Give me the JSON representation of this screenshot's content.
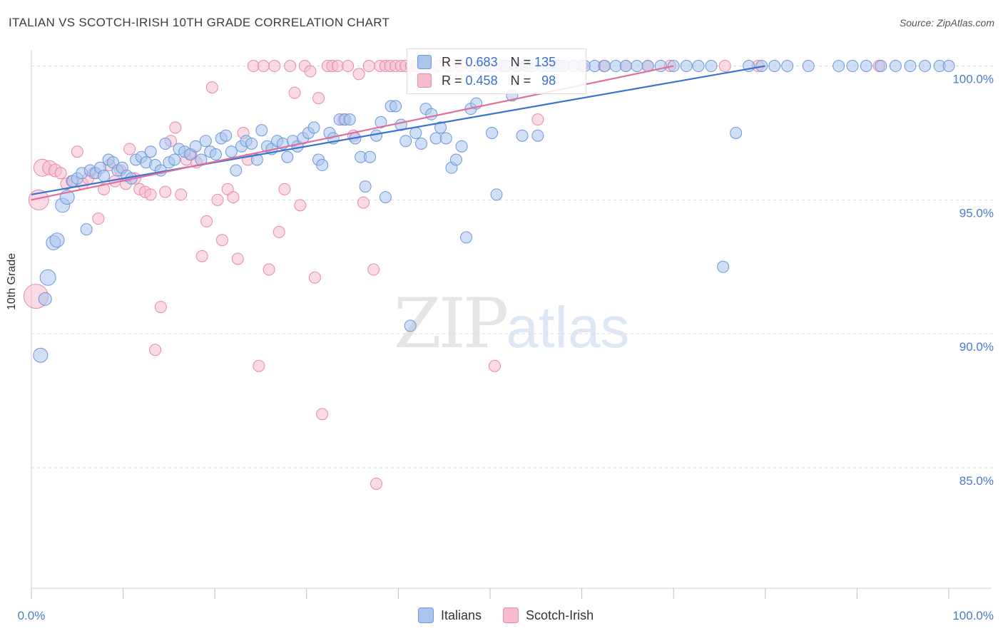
{
  "header": {
    "title": "ITALIAN VS SCOTCH-IRISH 10TH GRADE CORRELATION CHART",
    "source": "Source: ZipAtlas.com"
  },
  "watermark": {
    "zip": "ZIP",
    "atlas": "atlas"
  },
  "legend": {
    "rows": [
      {
        "r_label": "R =",
        "r_value": "0.683",
        "n_label": "N =",
        "n_value": "135"
      },
      {
        "r_label": "R =",
        "r_value": "0.458",
        "n_label": "N =",
        "n_value": "98"
      }
    ],
    "bottom": [
      "Italians",
      "Scotch-Irish"
    ]
  },
  "colors": {
    "italians_fill": "#a9c5ee",
    "italians_stroke": "#6d98d8",
    "italians_line": "#3a73d0",
    "scotch_fill": "#f6bccd",
    "scotch_stroke": "#e78aa8",
    "scotch_line": "#e0709a",
    "tick_label": "#4a7bd0"
  },
  "chart_data": {
    "type": "scatter",
    "title": "ITALIAN VS SCOTCH-IRISH 10TH GRADE CORRELATION CHART",
    "ylabel": "10th Grade",
    "xlabel": "",
    "xlim": [
      0,
      100
    ],
    "ylim": [
      80.5,
      100.6
    ],
    "x_tick_labels": [
      "0.0%",
      "100.0%"
    ],
    "y_ticks": [
      85.0,
      90.0,
      95.0,
      100.0
    ],
    "y_tick_labels": [
      "85.0%",
      "90.0%",
      "95.0%",
      "100.0%"
    ],
    "grid": true,
    "legend_placement": "top-center",
    "series": [
      {
        "name": "Italians",
        "trend": {
          "x": [
            0,
            80
          ],
          "y": [
            95.2,
            100.0
          ]
        },
        "points": [
          [
            1.0,
            89.2,
            10
          ],
          [
            1.5,
            91.3,
            9
          ],
          [
            1.8,
            92.1,
            11
          ],
          [
            2.4,
            93.4,
            10
          ],
          [
            2.8,
            93.5,
            10
          ],
          [
            3.4,
            94.8,
            10
          ],
          [
            3.9,
            95.1,
            10
          ],
          [
            4.5,
            95.7,
            8
          ],
          [
            5.0,
            95.8,
            8
          ],
          [
            5.5,
            96.0,
            8
          ],
          [
            6.0,
            93.9,
            8
          ],
          [
            6.4,
            96.1,
            8
          ],
          [
            7.0,
            96.0,
            8
          ],
          [
            7.5,
            96.2,
            8
          ],
          [
            7.9,
            95.9,
            8
          ],
          [
            8.4,
            96.5,
            8
          ],
          [
            8.9,
            96.4,
            8
          ],
          [
            9.4,
            96.1,
            8
          ],
          [
            9.9,
            96.2,
            8
          ],
          [
            10.4,
            95.9,
            8
          ],
          [
            10.9,
            95.8,
            8
          ],
          [
            11.4,
            96.5,
            8
          ],
          [
            12.0,
            96.6,
            8
          ],
          [
            12.5,
            96.4,
            8
          ],
          [
            13.0,
            96.8,
            8
          ],
          [
            13.5,
            96.3,
            8
          ],
          [
            14.1,
            96.1,
            8
          ],
          [
            14.6,
            97.1,
            8
          ],
          [
            15.0,
            96.4,
            8
          ],
          [
            15.6,
            96.5,
            8
          ],
          [
            16.1,
            96.9,
            8
          ],
          [
            16.7,
            96.8,
            8
          ],
          [
            17.3,
            96.7,
            8
          ],
          [
            17.9,
            97.0,
            8
          ],
          [
            18.5,
            96.5,
            8
          ],
          [
            19.0,
            97.2,
            8
          ],
          [
            19.5,
            96.8,
            8
          ],
          [
            20.1,
            96.7,
            8
          ],
          [
            20.7,
            97.3,
            8
          ],
          [
            21.2,
            97.4,
            8
          ],
          [
            21.8,
            96.8,
            8
          ],
          [
            22.3,
            96.1,
            8
          ],
          [
            22.9,
            97.0,
            8
          ],
          [
            23.4,
            97.2,
            8
          ],
          [
            24.0,
            97.1,
            8
          ],
          [
            24.6,
            96.5,
            8
          ],
          [
            25.1,
            97.6,
            8
          ],
          [
            25.7,
            97.0,
            8
          ],
          [
            26.2,
            96.9,
            8
          ],
          [
            26.8,
            97.2,
            8
          ],
          [
            27.4,
            97.1,
            8
          ],
          [
            27.9,
            96.6,
            8
          ],
          [
            28.5,
            97.2,
            8
          ],
          [
            29.0,
            97.0,
            8
          ],
          [
            29.6,
            97.3,
            8
          ],
          [
            30.2,
            97.5,
            8
          ],
          [
            30.8,
            97.7,
            8
          ],
          [
            31.3,
            96.5,
            8
          ],
          [
            31.7,
            96.3,
            8
          ],
          [
            32.5,
            97.5,
            8
          ],
          [
            32.9,
            97.3,
            8
          ],
          [
            33.6,
            98.0,
            8
          ],
          [
            34.2,
            98.0,
            8
          ],
          [
            34.7,
            98.0,
            8
          ],
          [
            35.3,
            97.3,
            8
          ],
          [
            35.9,
            96.6,
            8
          ],
          [
            36.4,
            95.5,
            8
          ],
          [
            36.9,
            96.6,
            8
          ],
          [
            37.6,
            97.4,
            8
          ],
          [
            38.1,
            97.9,
            8
          ],
          [
            38.6,
            95.1,
            8
          ],
          [
            39.2,
            98.5,
            8
          ],
          [
            39.7,
            98.5,
            8
          ],
          [
            40.3,
            97.8,
            8
          ],
          [
            40.8,
            97.2,
            8
          ],
          [
            41.3,
            90.3,
            8
          ],
          [
            41.9,
            97.5,
            8
          ],
          [
            42.5,
            97.1,
            8
          ],
          [
            43.0,
            98.4,
            8
          ],
          [
            43.6,
            98.2,
            8
          ],
          [
            44.1,
            97.3,
            8
          ],
          [
            44.6,
            97.7,
            8
          ],
          [
            45.2,
            97.3,
            8
          ],
          [
            45.8,
            96.2,
            8
          ],
          [
            46.3,
            96.5,
            8
          ],
          [
            46.9,
            97.0,
            8
          ],
          [
            47.4,
            93.6,
            8
          ],
          [
            47.9,
            98.4,
            8
          ],
          [
            48.5,
            98.6,
            8
          ],
          [
            49.0,
            100.0,
            8
          ],
          [
            49.6,
            100.0,
            8
          ],
          [
            50.2,
            97.5,
            8
          ],
          [
            50.7,
            95.2,
            8
          ],
          [
            51.3,
            100.0,
            8
          ],
          [
            51.8,
            100.0,
            8
          ],
          [
            52.4,
            98.9,
            8
          ],
          [
            53.0,
            100.0,
            8
          ],
          [
            53.5,
            97.4,
            8
          ],
          [
            54.0,
            100.0,
            8
          ],
          [
            54.6,
            100.0,
            8
          ],
          [
            55.2,
            97.4,
            8
          ],
          [
            55.7,
            100.0,
            8
          ],
          [
            56.3,
            100.0,
            8
          ],
          [
            56.8,
            100.0,
            8
          ],
          [
            57.4,
            100.0,
            8
          ],
          [
            58.0,
            100.0,
            8
          ],
          [
            59.1,
            100.0,
            8
          ],
          [
            60.3,
            100.0,
            8
          ],
          [
            61.4,
            100.0,
            8
          ],
          [
            62.5,
            100.0,
            8
          ],
          [
            63.7,
            100.0,
            8
          ],
          [
            64.8,
            100.0,
            8
          ],
          [
            66.0,
            100.0,
            8
          ],
          [
            67.2,
            100.0,
            8
          ],
          [
            68.6,
            100.0,
            8
          ],
          [
            70.0,
            100.0,
            8
          ],
          [
            71.4,
            100.0,
            8
          ],
          [
            72.7,
            100.0,
            8
          ],
          [
            74.1,
            100.0,
            8
          ],
          [
            75.4,
            92.5,
            8
          ],
          [
            76.8,
            97.5,
            8
          ],
          [
            78.2,
            100.0,
            8
          ],
          [
            79.6,
            100.0,
            8
          ],
          [
            81.0,
            100.0,
            8
          ],
          [
            82.4,
            100.0,
            8
          ],
          [
            84.7,
            100.0,
            8
          ],
          [
            88.0,
            100.0,
            8
          ],
          [
            89.5,
            100.0,
            8
          ],
          [
            91.0,
            100.0,
            8
          ],
          [
            92.6,
            100.0,
            8
          ],
          [
            94.2,
            100.0,
            8
          ],
          [
            95.8,
            100.0,
            8
          ],
          [
            97.4,
            100.0,
            8
          ],
          [
            99.0,
            100.0,
            8
          ],
          [
            100.0,
            100.0,
            8
          ]
        ]
      },
      {
        "name": "Scotch-Irish",
        "trend": {
          "x": [
            0,
            70
          ],
          "y": [
            95.0,
            100.0
          ]
        },
        "points": [
          [
            0.5,
            91.4,
            17
          ],
          [
            0.8,
            95.0,
            14
          ],
          [
            1.2,
            96.2,
            12
          ],
          [
            2.0,
            96.2,
            10
          ],
          [
            2.6,
            96.1,
            9
          ],
          [
            3.2,
            96.0,
            8
          ],
          [
            3.8,
            95.6,
            8
          ],
          [
            4.4,
            95.7,
            8
          ],
          [
            5.0,
            96.8,
            8
          ],
          [
            5.6,
            95.6,
            8
          ],
          [
            6.2,
            95.8,
            8
          ],
          [
            6.8,
            96.0,
            8
          ],
          [
            7.3,
            94.3,
            8
          ],
          [
            7.9,
            95.4,
            8
          ],
          [
            8.5,
            96.3,
            8
          ],
          [
            9.1,
            95.7,
            8
          ],
          [
            9.7,
            96.1,
            8
          ],
          [
            10.3,
            95.6,
            8
          ],
          [
            10.7,
            96.9,
            8
          ],
          [
            11.3,
            95.8,
            8
          ],
          [
            11.8,
            95.4,
            8
          ],
          [
            12.4,
            95.3,
            8
          ],
          [
            13.0,
            95.2,
            8
          ],
          [
            13.5,
            89.4,
            8
          ],
          [
            14.1,
            91.0,
            8
          ],
          [
            14.6,
            95.3,
            8
          ],
          [
            15.2,
            97.2,
            8
          ],
          [
            15.7,
            97.7,
            8
          ],
          [
            16.3,
            95.2,
            8
          ],
          [
            16.9,
            96.5,
            8
          ],
          [
            17.4,
            96.7,
            8
          ],
          [
            18.0,
            96.4,
            8
          ],
          [
            18.6,
            92.9,
            8
          ],
          [
            19.1,
            94.2,
            8
          ],
          [
            19.7,
            99.2,
            8
          ],
          [
            20.3,
            95.0,
            8
          ],
          [
            20.8,
            93.5,
            8
          ],
          [
            21.4,
            95.4,
            8
          ],
          [
            22.0,
            95.1,
            8
          ],
          [
            22.5,
            92.8,
            8
          ],
          [
            23.1,
            97.5,
            8
          ],
          [
            23.6,
            96.5,
            8
          ],
          [
            24.2,
            100.0,
            8
          ],
          [
            24.8,
            88.8,
            8
          ],
          [
            25.3,
            100.0,
            8
          ],
          [
            25.9,
            92.4,
            8
          ],
          [
            26.5,
            100.0,
            8
          ],
          [
            27.0,
            93.8,
            8
          ],
          [
            27.6,
            95.4,
            8
          ],
          [
            28.2,
            100.0,
            8
          ],
          [
            28.7,
            99.0,
            8
          ],
          [
            29.3,
            94.8,
            8
          ],
          [
            29.8,
            100.0,
            8
          ],
          [
            30.4,
            99.8,
            8
          ],
          [
            30.9,
            92.1,
            8
          ],
          [
            31.3,
            98.8,
            8
          ],
          [
            31.7,
            87.0,
            8
          ],
          [
            32.3,
            100.0,
            8
          ],
          [
            32.8,
            100.0,
            8
          ],
          [
            33.4,
            100.0,
            8
          ],
          [
            34.0,
            98.0,
            8
          ],
          [
            34.5,
            100.0,
            8
          ],
          [
            35.1,
            97.4,
            8
          ],
          [
            35.7,
            99.7,
            8
          ],
          [
            36.2,
            94.9,
            8
          ],
          [
            36.8,
            100.0,
            8
          ],
          [
            37.3,
            92.4,
            8
          ],
          [
            37.6,
            84.4,
            8
          ],
          [
            38.0,
            100.0,
            8
          ],
          [
            38.6,
            100.0,
            8
          ],
          [
            39.1,
            100.0,
            8
          ],
          [
            39.7,
            100.0,
            8
          ],
          [
            40.3,
            100.0,
            8
          ],
          [
            40.8,
            100.0,
            8
          ],
          [
            41.4,
            100.0,
            8
          ],
          [
            42.0,
            100.0,
            8
          ],
          [
            43.2,
            100.0,
            8
          ],
          [
            44.4,
            100.0,
            8
          ],
          [
            45.6,
            100.0,
            8
          ],
          [
            46.8,
            100.0,
            8
          ],
          [
            48.0,
            100.0,
            8
          ],
          [
            49.2,
            100.0,
            8
          ],
          [
            50.4,
            100.0,
            8
          ],
          [
            50.5,
            88.8,
            8
          ],
          [
            51.6,
            100.0,
            8
          ],
          [
            52.8,
            100.0,
            8
          ],
          [
            54.0,
            100.0,
            8
          ],
          [
            55.2,
            98.0,
            8
          ],
          [
            56.4,
            100.0,
            8
          ],
          [
            57.6,
            100.0,
            8
          ],
          [
            60.0,
            100.0,
            8
          ],
          [
            62.4,
            100.0,
            8
          ],
          [
            64.8,
            100.0,
            8
          ],
          [
            67.2,
            100.0,
            8
          ],
          [
            69.6,
            100.0,
            8
          ],
          [
            75.6,
            100.0,
            8
          ],
          [
            79.2,
            100.0,
            8
          ],
          [
            92.4,
            100.0,
            8
          ]
        ]
      }
    ]
  }
}
